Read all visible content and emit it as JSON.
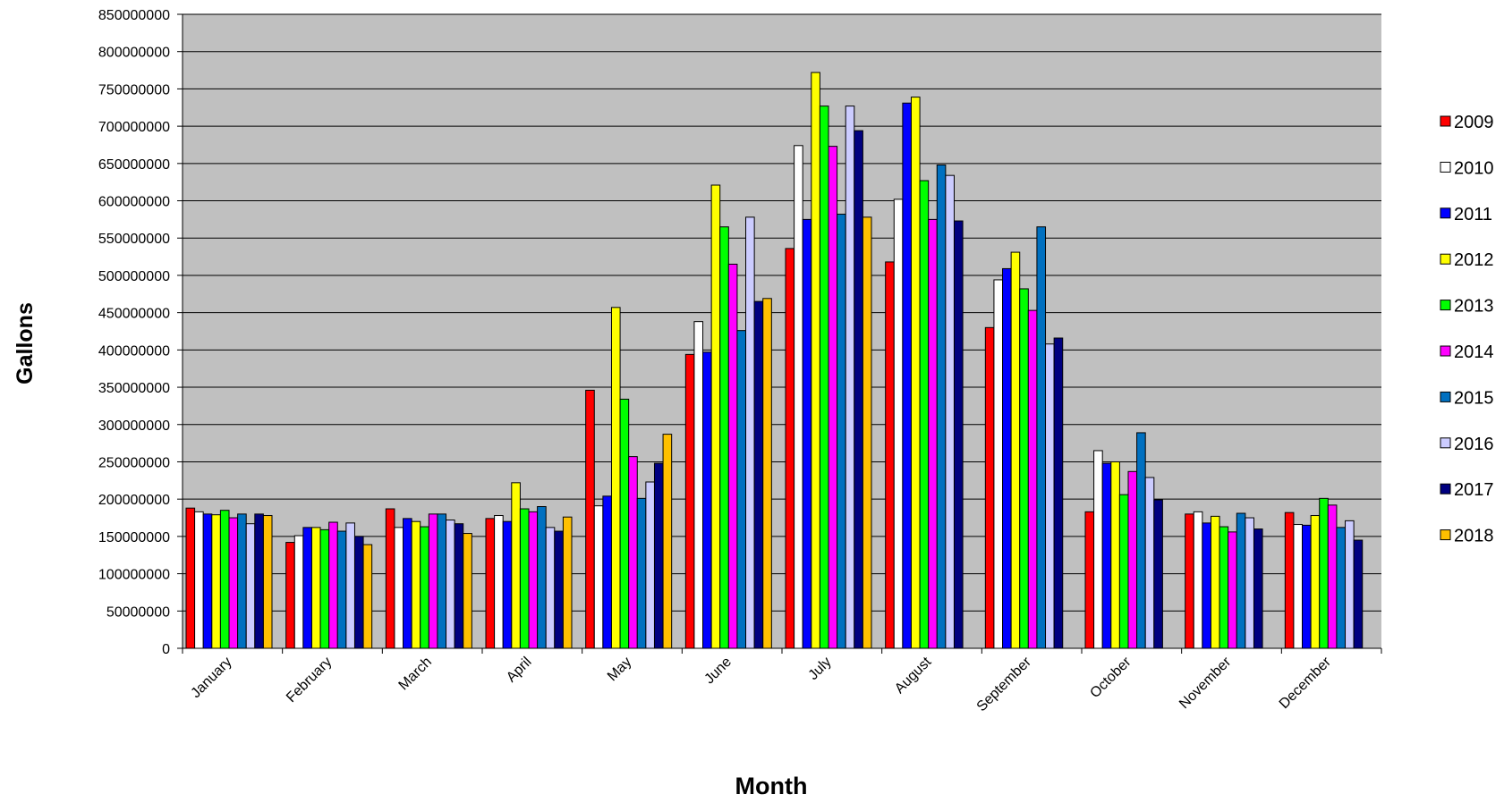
{
  "chart_data": {
    "type": "bar",
    "title": "",
    "xlabel": "Month",
    "ylabel": "Gallons",
    "ylim": [
      0,
      850000000
    ],
    "yticks": [
      0,
      50000000,
      100000000,
      150000000,
      200000000,
      250000000,
      300000000,
      350000000,
      400000000,
      450000000,
      500000000,
      550000000,
      600000000,
      650000000,
      700000000,
      750000000,
      800000000,
      850000000
    ],
    "grid": true,
    "legend_position": "right",
    "plot_background": "#C0C0C0",
    "categories": [
      "January",
      "February",
      "March",
      "April",
      "May",
      "June",
      "July",
      "August",
      "September",
      "October",
      "November",
      "December"
    ],
    "series": [
      {
        "name": "2009",
        "color": "#FF0000",
        "values": [
          188000000,
          142000000,
          187000000,
          174000000,
          346000000,
          394000000,
          536000000,
          518000000,
          430000000,
          183000000,
          180000000,
          182000000
        ]
      },
      {
        "name": "2010",
        "color": "#FFFFFF",
        "values": [
          183000000,
          151000000,
          162000000,
          178000000,
          191000000,
          438000000,
          674000000,
          602000000,
          494000000,
          265000000,
          183000000,
          166000000
        ]
      },
      {
        "name": "2011",
        "color": "#0000FF",
        "values": [
          180000000,
          162000000,
          174000000,
          170000000,
          204000000,
          397000000,
          575000000,
          731000000,
          509000000,
          248000000,
          168000000,
          165000000
        ]
      },
      {
        "name": "2012",
        "color": "#FFFF00",
        "values": [
          179000000,
          162000000,
          170000000,
          222000000,
          457000000,
          621000000,
          772000000,
          739000000,
          531000000,
          250000000,
          177000000,
          178000000
        ]
      },
      {
        "name": "2013",
        "color": "#00FF00",
        "values": [
          185000000,
          159000000,
          163000000,
          187000000,
          334000000,
          565000000,
          727000000,
          627000000,
          482000000,
          206000000,
          163000000,
          201000000
        ]
      },
      {
        "name": "2014",
        "color": "#FF00FF",
        "values": [
          175000000,
          169000000,
          180000000,
          183000000,
          257000000,
          515000000,
          673000000,
          575000000,
          453000000,
          237000000,
          156000000,
          192000000
        ]
      },
      {
        "name": "2015",
        "color": "#0070C0",
        "values": [
          180000000,
          157000000,
          180000000,
          190000000,
          201000000,
          426000000,
          582000000,
          648000000,
          565000000,
          289000000,
          181000000,
          162000000
        ]
      },
      {
        "name": "2016",
        "color": "#CCCCFF",
        "values": [
          167000000,
          168000000,
          172000000,
          162000000,
          223000000,
          578000000,
          727000000,
          634000000,
          408000000,
          229000000,
          175000000,
          171000000
        ]
      },
      {
        "name": "2017",
        "color": "#000080",
        "values": [
          180000000,
          150000000,
          167000000,
          157000000,
          248000000,
          465000000,
          694000000,
          573000000,
          416000000,
          199000000,
          160000000,
          145000000
        ]
      },
      {
        "name": "2018",
        "color": "#FFC000",
        "values": [
          178000000,
          139000000,
          154000000,
          176000000,
          287000000,
          469000000,
          578000000,
          null,
          null,
          null,
          null,
          null
        ]
      }
    ]
  }
}
